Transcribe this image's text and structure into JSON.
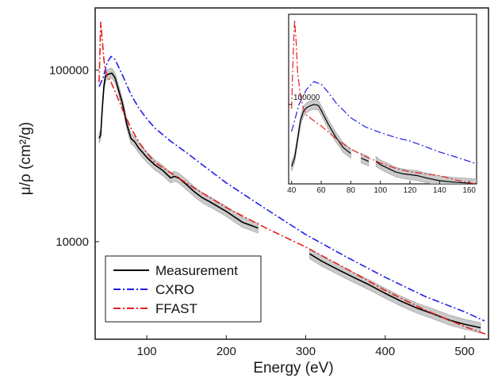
{
  "chart_data": [
    {
      "type": "line",
      "xlabel": "Energy (eV)",
      "ylabel": "μ/ρ (cm²/g)",
      "xlim": [
        35,
        530
      ],
      "ylim": [
        2700,
        230000
      ],
      "yscale": "log",
      "x_ticks": [
        "100",
        "200",
        "300",
        "400",
        "500"
      ],
      "y_ticks": [
        "10000",
        "100000"
      ],
      "legend_position": "bottom-left",
      "series": [
        {
          "name": "Measurement",
          "color": "#000000",
          "style": "solid",
          "uncertainty_band": true,
          "segments": [
            [
              [
                40,
                40000
              ],
              [
                42,
                42000
              ],
              [
                44,
                60000
              ],
              [
                46,
                80000
              ],
              [
                48,
                92000
              ],
              [
                50,
                94000
              ],
              [
                53,
                95000
              ],
              [
                56,
                96000
              ],
              [
                60,
                90000
              ],
              [
                65,
                75000
              ],
              [
                70,
                62000
              ],
              [
                75,
                48000
              ],
              [
                80,
                40000
              ],
              [
                85,
                38000
              ],
              [
                90,
                35000
              ],
              [
                95,
                33000
              ],
              [
                100,
                31000
              ],
              [
                110,
                28000
              ],
              [
                120,
                26000
              ],
              [
                130,
                23500
              ],
              [
                135,
                24000
              ],
              [
                140,
                23500
              ],
              [
                150,
                21500
              ],
              [
                160,
                19500
              ],
              [
                170,
                18000
              ],
              [
                180,
                17000
              ],
              [
                200,
                15000
              ],
              [
                220,
                13000
              ],
              [
                240,
                12000
              ]
            ],
            [
              [
                305,
                8500
              ],
              [
                320,
                7700
              ],
              [
                340,
                6900
              ],
              [
                360,
                6200
              ],
              [
                380,
                5600
              ],
              [
                400,
                5000
              ],
              [
                420,
                4500
              ],
              [
                440,
                4100
              ],
              [
                460,
                3800
              ],
              [
                480,
                3500
              ],
              [
                500,
                3300
              ],
              [
                520,
                3150
              ]
            ]
          ]
        },
        {
          "name": "CXRO",
          "color": "#1f1fe6",
          "style": "dashdot",
          "points": [
            [
              40,
              80000
            ],
            [
              45,
              90000
            ],
            [
              50,
              110000
            ],
            [
              55,
              120000
            ],
            [
              60,
              115000
            ],
            [
              70,
              92000
            ],
            [
              80,
              72000
            ],
            [
              90,
              60000
            ],
            [
              100,
              52000
            ],
            [
              110,
              46000
            ],
            [
              120,
              42000
            ],
            [
              130,
              38500
            ],
            [
              150,
              33000
            ],
            [
              170,
              28000
            ],
            [
              200,
              22000
            ],
            [
              250,
              15500
            ],
            [
              300,
              11000
            ],
            [
              350,
              8200
            ],
            [
              400,
              6200
            ],
            [
              450,
              4800
            ],
            [
              500,
              3900
            ],
            [
              525,
              3450
            ]
          ]
        },
        {
          "name": "FFAST",
          "color": "#e61f1f",
          "style": "dashdot",
          "points": [
            [
              40,
              85000
            ],
            [
              42,
              190000
            ],
            [
              44,
              150000
            ],
            [
              46,
              115000
            ],
            [
              48,
              100000
            ],
            [
              50,
              92000
            ],
            [
              55,
              85000
            ],
            [
              60,
              75000
            ],
            [
              70,
              58000
            ],
            [
              80,
              46000
            ],
            [
              90,
              38000
            ],
            [
              100,
              33000
            ],
            [
              110,
              29000
            ],
            [
              120,
              27000
            ],
            [
              140,
              23500
            ],
            [
              160,
              20500
            ],
            [
              180,
              18000
            ],
            [
              200,
              15800
            ],
            [
              250,
              12000
            ],
            [
              300,
              9300
            ],
            [
              350,
              7000
            ],
            [
              400,
              5200
            ],
            [
              450,
              4000
            ],
            [
              500,
              3200
            ],
            [
              530,
              2850
            ]
          ]
        }
      ]
    },
    {
      "type": "line",
      "xlim": [
        38,
        165
      ],
      "ylim": [
        38000,
        300000
      ],
      "yscale": "log",
      "x_ticks": [
        "40",
        "60",
        "80",
        "100",
        "120",
        "140",
        "160"
      ],
      "y_ticks": [
        "100000"
      ],
      "series": [
        {
          "name": "Measurement",
          "color": "#000000",
          "style": "solid",
          "uncertainty_band": true,
          "segments": [
            [
              [
                40,
                47000
              ],
              [
                42,
                52000
              ],
              [
                44,
                65000
              ],
              [
                46,
                82000
              ],
              [
                48,
                92000
              ],
              [
                50,
                96000
              ],
              [
                52,
                98000
              ],
              [
                55,
                100000
              ],
              [
                58,
                99000
              ],
              [
                60,
                93000
              ],
              [
                65,
                78000
              ],
              [
                70,
                67000
              ],
              [
                75,
                59000
              ],
              [
                80,
                55000
              ]
            ],
            [
              [
                87,
                52000
              ],
              [
                92,
                50000
              ]
            ],
            [
              [
                97,
                50000
              ],
              [
                100,
                48000
              ],
              [
                105,
                46000
              ],
              [
                110,
                44000
              ],
              [
                115,
                43000
              ],
              [
                120,
                42500
              ],
              [
                125,
                42000
              ],
              [
                130,
                41000
              ],
              [
                140,
                39500
              ],
              [
                150,
                38800
              ],
              [
                160,
                38300
              ],
              [
                165,
                38000
              ]
            ]
          ]
        },
        {
          "name": "CXRO",
          "color": "#1f1fe6",
          "style": "dashdot",
          "points": [
            [
              40,
              72000
            ],
            [
              45,
              100000
            ],
            [
              50,
              120000
            ],
            [
              55,
              132000
            ],
            [
              60,
              128000
            ],
            [
              65,
              115000
            ],
            [
              70,
              102000
            ],
            [
              80,
              85000
            ],
            [
              90,
              76000
            ],
            [
              100,
              71000
            ],
            [
              110,
              67000
            ],
            [
              120,
              64000
            ],
            [
              130,
              60000
            ],
            [
              140,
              56000
            ],
            [
              150,
              53000
            ],
            [
              160,
              50000
            ],
            [
              165,
              48500
            ]
          ]
        },
        {
          "name": "FFAST",
          "color": "#e61f1f",
          "style": "dashdot",
          "points": [
            [
              40,
              95000
            ],
            [
              41,
              180000
            ],
            [
              42,
              280000
            ],
            [
              43,
              220000
            ],
            [
              44,
              150000
            ],
            [
              46,
              110000
            ],
            [
              48,
              95000
            ],
            [
              50,
              88000
            ],
            [
              55,
              82000
            ],
            [
              60,
              77000
            ],
            [
              70,
              66000
            ],
            [
              80,
              58000
            ],
            [
              90,
              53000
            ],
            [
              100,
              49000
            ],
            [
              110,
              46000
            ],
            [
              120,
              44000
            ],
            [
              130,
              43000
            ],
            [
              140,
              42000
            ],
            [
              150,
              40000
            ],
            [
              160,
              38500
            ],
            [
              165,
              38000
            ]
          ]
        }
      ]
    }
  ]
}
